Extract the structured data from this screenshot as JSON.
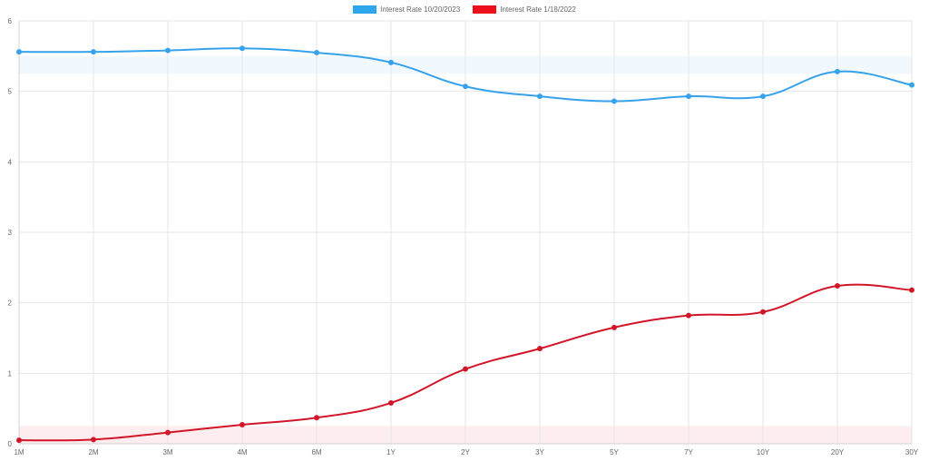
{
  "chart_data": {
    "type": "line",
    "title": "",
    "xlabel": "",
    "ylabel": "",
    "categories": [
      "1M",
      "2M",
      "3M",
      "4M",
      "6M",
      "1Y",
      "2Y",
      "3Y",
      "5Y",
      "7Y",
      "10Y",
      "20Y",
      "30Y"
    ],
    "ylim": [
      0,
      6
    ],
    "yticks": [
      0,
      1,
      2,
      3,
      4,
      5,
      6
    ],
    "grid": true,
    "legend_position": "top-center",
    "series": [
      {
        "name": "Interest Rate 10/20/2023",
        "color": "#36a2eb",
        "legend_color": "#2ea6ee",
        "values": [
          5.56,
          5.56,
          5.58,
          5.61,
          5.55,
          5.41,
          5.07,
          4.93,
          4.86,
          4.93,
          4.93,
          5.28,
          5.09
        ],
        "band": [
          5.25,
          5.5
        ],
        "band_color": "#36a2eb"
      },
      {
        "name": "Interest Rate 1/18/2022",
        "color": "#d2162a",
        "legend_color": "#ee0f1c",
        "values": [
          0.05,
          0.06,
          0.16,
          0.27,
          0.37,
          0.58,
          1.06,
          1.35,
          1.65,
          1.82,
          1.87,
          2.24,
          2.18
        ],
        "band": [
          0,
          0.25
        ],
        "band_color": "#e8001a"
      }
    ]
  }
}
